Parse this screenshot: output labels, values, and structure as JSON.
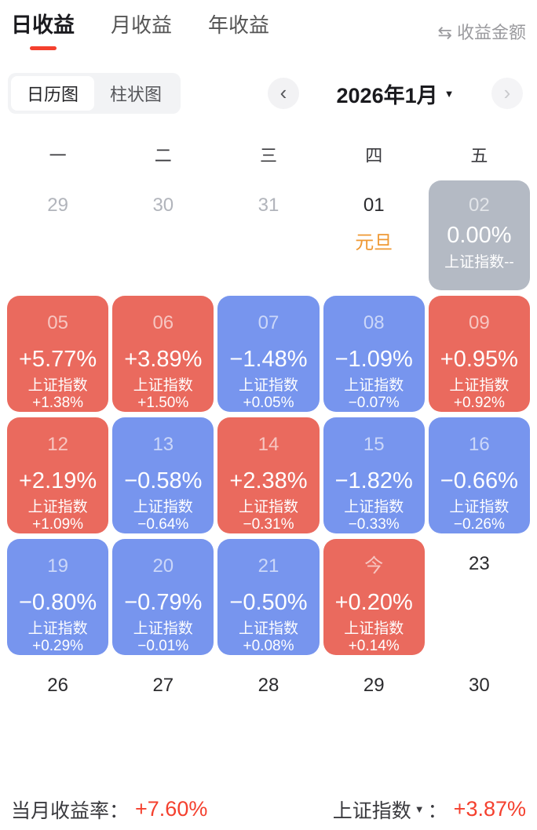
{
  "tabs": [
    {
      "label": "日收益",
      "active": true
    },
    {
      "label": "月收益",
      "active": false
    },
    {
      "label": "年收益",
      "active": false
    }
  ],
  "toggle_amount": {
    "icon": "swap-arrows",
    "label": "收益金额"
  },
  "view_switch": {
    "options": [
      {
        "label": "日历图",
        "selected": true
      },
      {
        "label": "柱状图",
        "selected": false
      }
    ]
  },
  "month_nav": {
    "prev_icon": "chevron-left",
    "title": "2026年1月",
    "dropdown_icon": "caret-down",
    "next_icon": "chevron-right"
  },
  "weekdays": [
    "一",
    "二",
    "三",
    "四",
    "五"
  ],
  "calendar": {
    "rows": [
      [
        {
          "day": "29",
          "type": "muted"
        },
        {
          "day": "30",
          "type": "muted"
        },
        {
          "day": "31",
          "type": "muted"
        },
        {
          "day": "01",
          "type": "holiday",
          "holiday": "元旦"
        },
        {
          "day": "02",
          "type": "gray",
          "value": "0.00%",
          "index": "上证指数--"
        }
      ],
      [
        {
          "day": "05",
          "type": "up",
          "value": "+5.77%",
          "index": "上证指数+1.38%"
        },
        {
          "day": "06",
          "type": "up",
          "value": "+3.89%",
          "index": "上证指数+1.50%"
        },
        {
          "day": "07",
          "type": "down",
          "value": "−1.48%",
          "index": "上证指数+0.05%"
        },
        {
          "day": "08",
          "type": "down",
          "value": "−1.09%",
          "index": "上证指数−0.07%"
        },
        {
          "day": "09",
          "type": "up",
          "value": "+0.95%",
          "index": "上证指数+0.92%"
        }
      ],
      [
        {
          "day": "12",
          "type": "up",
          "value": "+2.19%",
          "index": "上证指数+1.09%"
        },
        {
          "day": "13",
          "type": "down",
          "value": "−0.58%",
          "index": "上证指数−0.64%"
        },
        {
          "day": "14",
          "type": "up",
          "value": "+2.38%",
          "index": "上证指数−0.31%"
        },
        {
          "day": "15",
          "type": "down",
          "value": "−1.82%",
          "index": "上证指数−0.33%"
        },
        {
          "day": "16",
          "type": "down",
          "value": "−0.66%",
          "index": "上证指数−0.26%"
        }
      ],
      [
        {
          "day": "19",
          "type": "down",
          "value": "−0.80%",
          "index": "上证指数+0.29%"
        },
        {
          "day": "20",
          "type": "down",
          "value": "−0.79%",
          "index": "上证指数−0.01%"
        },
        {
          "day": "21",
          "type": "down",
          "value": "−0.50%",
          "index": "上证指数+0.08%"
        },
        {
          "day": "今",
          "type": "up",
          "value": "+0.20%",
          "index": "上证指数+0.14%"
        },
        {
          "day": "23",
          "type": "plain"
        }
      ],
      [
        {
          "day": "26",
          "type": "plain"
        },
        {
          "day": "27",
          "type": "plain"
        },
        {
          "day": "28",
          "type": "plain"
        },
        {
          "day": "29",
          "type": "plain"
        },
        {
          "day": "30",
          "type": "plain"
        }
      ]
    ]
  },
  "footer": {
    "month_return_label": "当月收益率：",
    "month_return_value": "+7.60%",
    "index_label": "上证指数",
    "index_colon": "：",
    "index_value": "+3.87%"
  },
  "colors": {
    "up_cell": "#ea6a5e",
    "down_cell": "#7795ee",
    "gray_cell": "#b4bac4",
    "accent_red": "#f4402e",
    "holiday_orange": "#ef9833"
  }
}
